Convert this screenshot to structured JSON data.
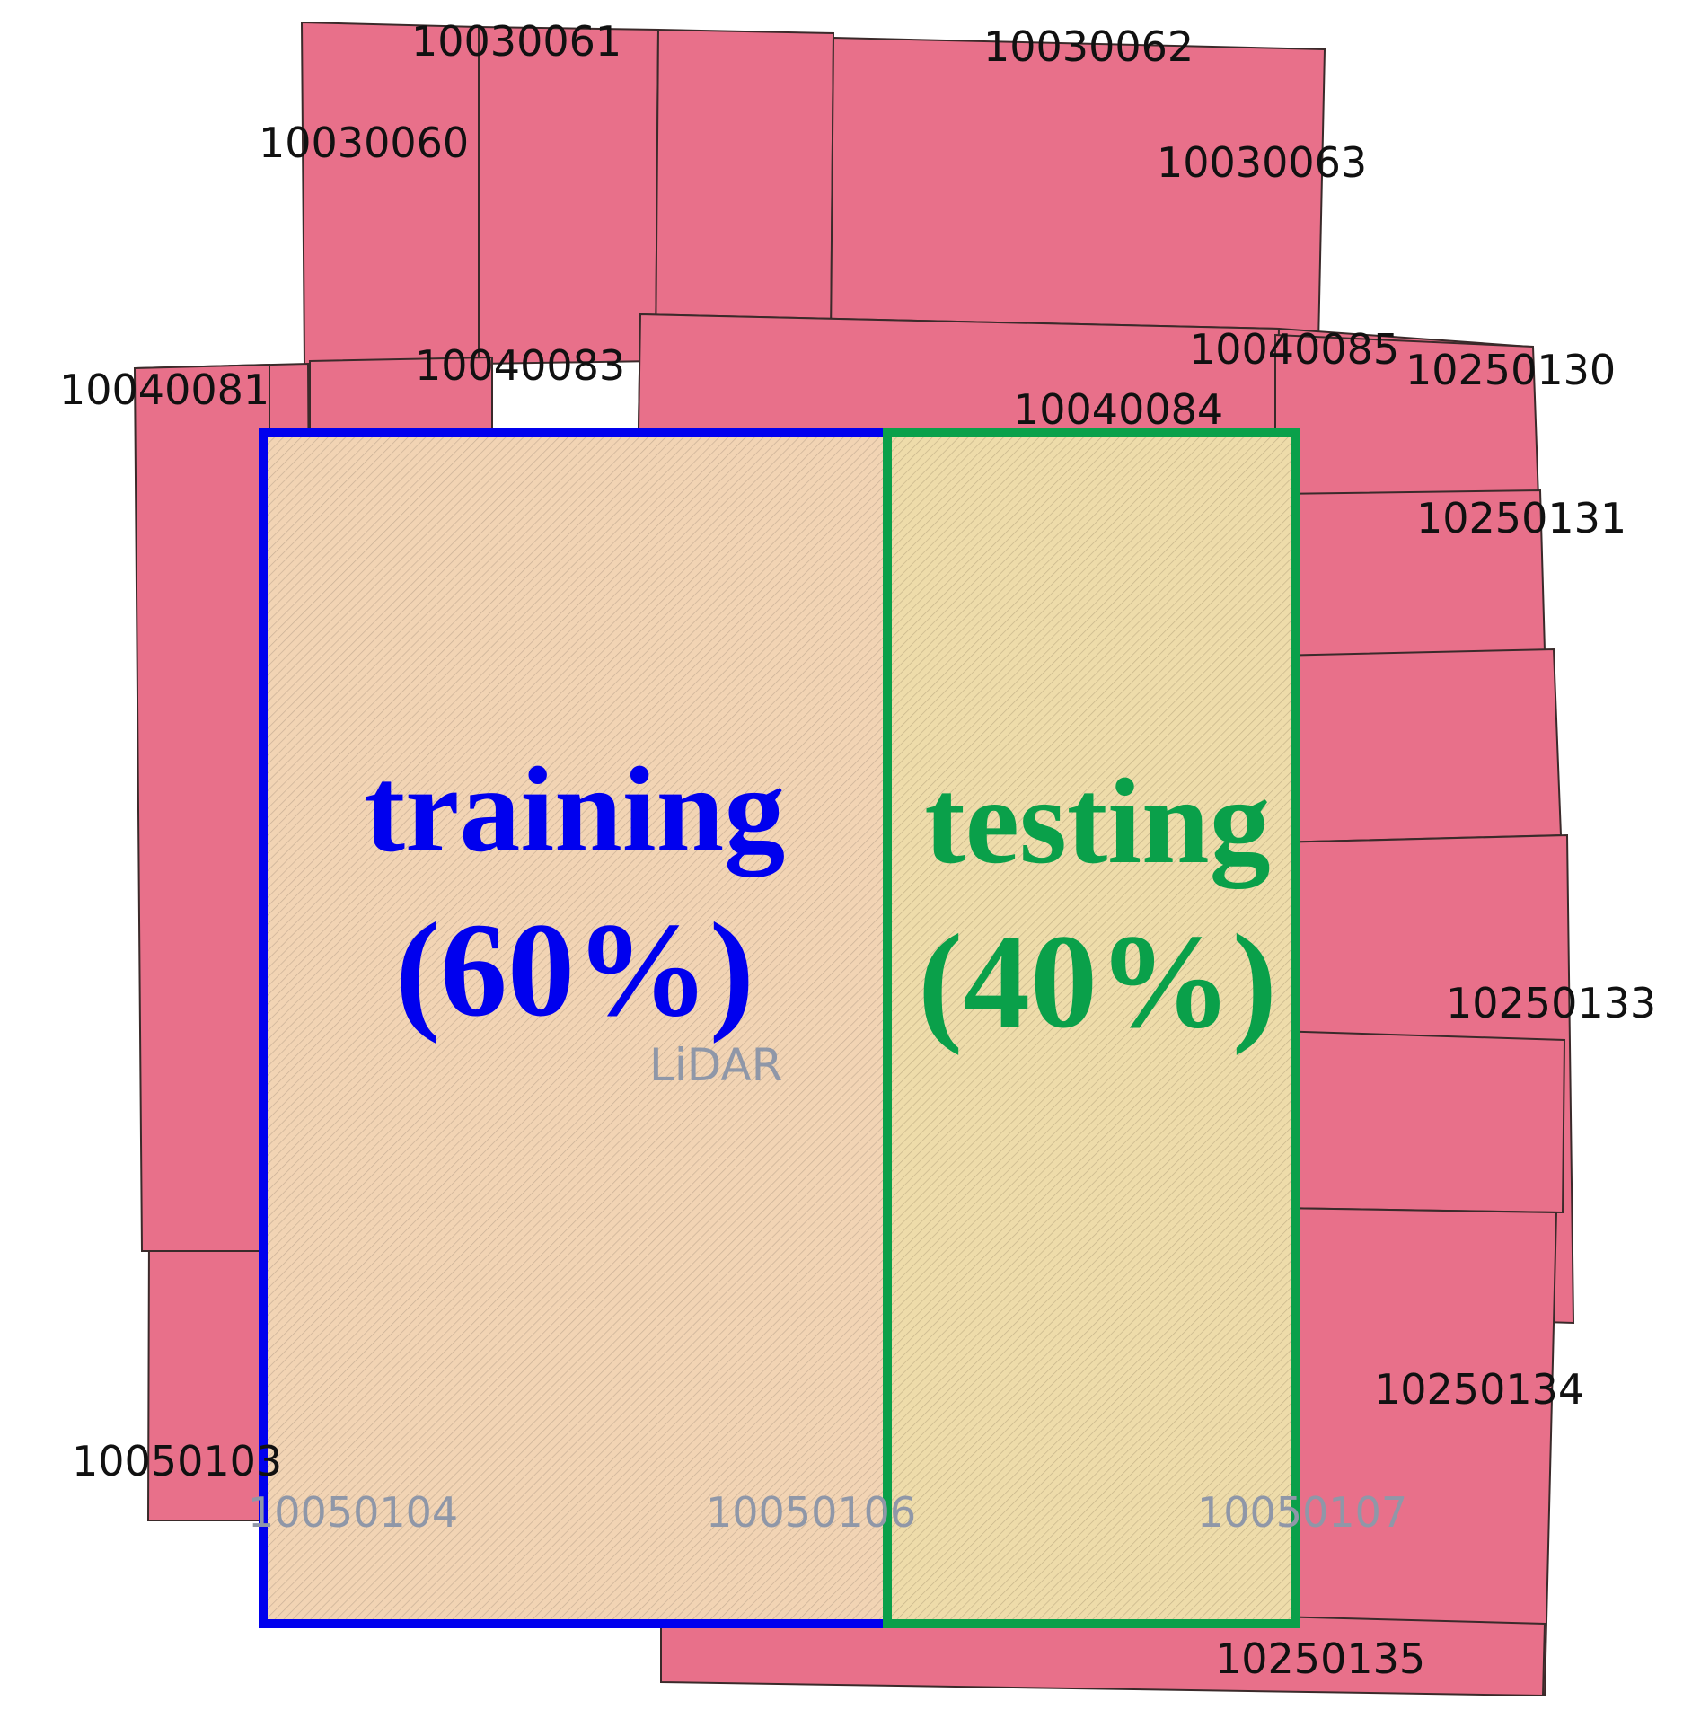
{
  "tiles": [
    {
      "id": "10030060"
    },
    {
      "id": "10030061"
    },
    {
      "id": "10030062"
    },
    {
      "id": "10030063"
    },
    {
      "id": "10040081"
    },
    {
      "id": "10040083"
    },
    {
      "id": "10040084"
    },
    {
      "id": "10040085"
    },
    {
      "id": "10250130"
    },
    {
      "id": "10250131"
    },
    {
      "id": "10250133"
    },
    {
      "id": "10250134"
    },
    {
      "id": "10250135"
    },
    {
      "id": "10050103"
    },
    {
      "id": "10050104"
    },
    {
      "id": "10050106"
    },
    {
      "id": "10050107"
    }
  ],
  "layer_label": "LiDAR",
  "training": {
    "title": "training",
    "percent_label": "(60%)",
    "fraction": 0.6,
    "color": "#0000ee"
  },
  "testing": {
    "title": "testing",
    "percent_label": "(40%)",
    "fraction": 0.4,
    "color": "#0aa04a"
  },
  "colors": {
    "tile_fill": "#e8708a",
    "area_fill": "#f2d4b4"
  }
}
